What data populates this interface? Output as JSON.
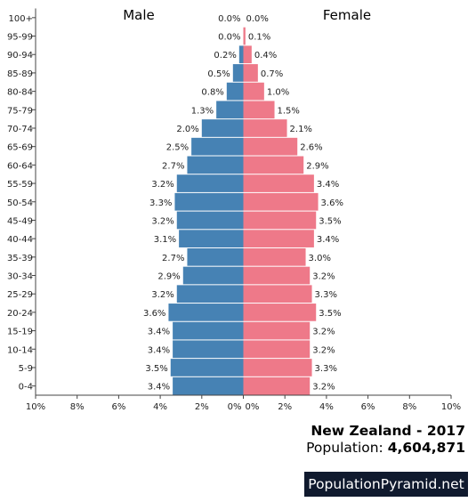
{
  "chart_data": {
    "type": "bar",
    "orientation": "horizontal-population-pyramid",
    "categories": [
      "100+",
      "95-99",
      "90-94",
      "85-89",
      "80-84",
      "75-79",
      "70-74",
      "65-69",
      "60-64",
      "55-59",
      "50-54",
      "45-49",
      "40-44",
      "35-39",
      "30-34",
      "25-29",
      "20-24",
      "15-19",
      "10-14",
      "5-9",
      "0-4"
    ],
    "series": [
      {
        "name": "Male",
        "color": "#4682b4",
        "values": [
          0.0,
          0.0,
          0.2,
          0.5,
          0.8,
          1.3,
          2.0,
          2.5,
          2.7,
          3.2,
          3.3,
          3.2,
          3.1,
          2.7,
          2.9,
          3.2,
          3.6,
          3.4,
          3.4,
          3.5,
          3.4
        ],
        "labels": [
          "0.0%",
          "0.0%",
          "0.2%",
          "0.5%",
          "0.8%",
          "1.3%",
          "2.0%",
          "2.5%",
          "2.7%",
          "3.2%",
          "3.3%",
          "3.2%",
          "3.1%",
          "2.7%",
          "2.9%",
          "3.2%",
          "3.6%",
          "3.4%",
          "3.4%",
          "3.5%",
          "3.4%"
        ]
      },
      {
        "name": "Female",
        "color": "#ee7989",
        "values": [
          0.0,
          0.1,
          0.4,
          0.7,
          1.0,
          1.5,
          2.1,
          2.6,
          2.9,
          3.4,
          3.6,
          3.5,
          3.4,
          3.0,
          3.2,
          3.3,
          3.5,
          3.2,
          3.2,
          3.3,
          3.2
        ],
        "labels": [
          "0.0%",
          "0.1%",
          "0.4%",
          "0.7%",
          "1.0%",
          "1.5%",
          "2.1%",
          "2.6%",
          "2.9%",
          "3.4%",
          "3.6%",
          "3.5%",
          "3.4%",
          "3.0%",
          "3.2%",
          "3.3%",
          "3.5%",
          "3.2%",
          "3.2%",
          "3.3%",
          "3.2%"
        ]
      }
    ],
    "xlim": [
      -10,
      10
    ],
    "xticks": [
      -10,
      -8,
      -6,
      -4,
      -2,
      0,
      2,
      4,
      6,
      8,
      10
    ],
    "xtick_labels_left": [
      "10%",
      "8%",
      "6%",
      "4%",
      "2%",
      "0%"
    ],
    "xtick_labels_right": [
      "0%",
      "2%",
      "4%",
      "6%",
      "8%",
      "10%"
    ],
    "grid": false
  },
  "info": {
    "country_year": "New Zealand - 2017",
    "population_label": "Population: ",
    "population_value": "4,604,871"
  },
  "brand": "PopulationPyramid.net"
}
